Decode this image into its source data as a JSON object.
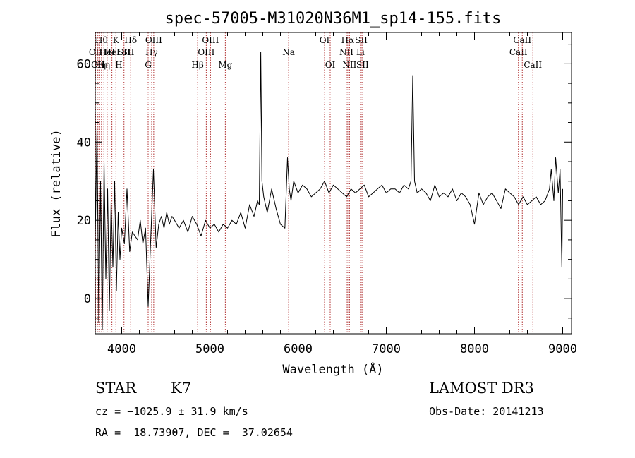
{
  "chart_data": {
    "type": "line",
    "title": "spec-57005-M31020N36M1_sp14-155.fits",
    "xlabel": "Wavelength (Å)",
    "ylabel": "Flux (relative)",
    "xlim": [
      3700,
      9100
    ],
    "ylim": [
      -9,
      68
    ],
    "xticks": [
      4000,
      5000,
      6000,
      7000,
      8000,
      9000
    ],
    "yticks": [
      0,
      20,
      40,
      60
    ],
    "series": [
      {
        "name": "spectrum",
        "x": [
          3700,
          3720,
          3740,
          3760,
          3780,
          3800,
          3820,
          3840,
          3860,
          3880,
          3900,
          3920,
          3940,
          3960,
          3980,
          4000,
          4030,
          4060,
          4090,
          4120,
          4150,
          4180,
          4210,
          4240,
          4270,
          4300,
          4330,
          4360,
          4390,
          4420,
          4450,
          4480,
          4510,
          4540,
          4570,
          4600,
          4650,
          4700,
          4750,
          4800,
          4850,
          4900,
          4950,
          5000,
          5050,
          5100,
          5150,
          5200,
          5250,
          5300,
          5350,
          5400,
          5450,
          5500,
          5540,
          5560,
          5577,
          5590,
          5610,
          5650,
          5700,
          5750,
          5800,
          5850,
          5880,
          5900,
          5920,
          5950,
          6000,
          6050,
          6100,
          6150,
          6200,
          6250,
          6300,
          6350,
          6400,
          6450,
          6500,
          6550,
          6600,
          6650,
          6700,
          6750,
          6800,
          6850,
          6900,
          6950,
          7000,
          7050,
          7100,
          7150,
          7200,
          7250,
          7280,
          7300,
          7320,
          7350,
          7400,
          7450,
          7500,
          7550,
          7600,
          7650,
          7700,
          7750,
          7800,
          7850,
          7900,
          7950,
          8000,
          8050,
          8100,
          8150,
          8200,
          8250,
          8300,
          8350,
          8400,
          8450,
          8500,
          8550,
          8600,
          8650,
          8700,
          8750,
          8800,
          8850,
          8870,
          8900,
          8920,
          8950,
          8970,
          8990,
          9000
        ],
        "values": [
          15,
          44,
          -6,
          30,
          -8,
          35,
          5,
          28,
          -3,
          25,
          8,
          30,
          2,
          22,
          10,
          18,
          14,
          28,
          12,
          17,
          16,
          15,
          20,
          14,
          18,
          -2,
          16,
          33,
          13,
          19,
          21,
          18,
          22,
          19,
          21,
          20,
          18,
          20,
          17,
          21,
          19,
          16,
          20,
          18,
          19,
          17,
          19,
          18,
          20,
          19,
          22,
          18,
          24,
          21,
          25,
          24,
          63,
          30,
          26,
          22,
          28,
          23,
          19,
          18,
          36,
          28,
          25,
          30,
          27,
          29,
          28,
          26,
          27,
          28,
          30,
          27,
          29,
          28,
          27,
          26,
          28,
          27,
          28,
          29,
          26,
          27,
          28,
          29,
          27,
          28,
          28,
          27,
          29,
          28,
          30,
          57,
          30,
          27,
          28,
          27,
          25,
          29,
          26,
          27,
          26,
          28,
          25,
          27,
          26,
          24,
          19,
          27,
          24,
          26,
          27,
          25,
          23,
          28,
          27,
          26,
          24,
          26,
          24,
          25,
          26,
          24,
          25,
          28,
          33,
          25,
          36,
          27,
          33,
          8,
          28
        ]
      }
    ],
    "lines": [
      {
        "wl": 3704,
        "label": "OII",
        "row": 1
      },
      {
        "wl": 3730,
        "label": "OII",
        "row": 2
      },
      {
        "wl": 3750,
        "label": "Hη",
        "row": 2
      },
      {
        "wl": 3771,
        "label": "Hθ",
        "row": 0
      },
      {
        "wl": 3798,
        "label": "Hη",
        "row": 2
      },
      {
        "wl": 3835,
        "label": "HeI",
        "row": 1
      },
      {
        "wl": 3889,
        "label": "HeI",
        "row": 1
      },
      {
        "wl": 3934,
        "label": "K",
        "row": 0
      },
      {
        "wl": 3968,
        "label": "H",
        "row": 2
      },
      {
        "wl": 4026,
        "label": "SII",
        "row": 1
      },
      {
        "wl": 4072,
        "label": "SII",
        "row": 1
      },
      {
        "wl": 4102,
        "label": "Hδ",
        "row": 0
      },
      {
        "wl": 4300,
        "label": "G",
        "row": 2
      },
      {
        "wl": 4340,
        "label": "Hγ",
        "row": 1
      },
      {
        "wl": 4363,
        "label": "OIII",
        "row": 0
      },
      {
        "wl": 4861,
        "label": "Hβ",
        "row": 2
      },
      {
        "wl": 4959,
        "label": "OIII",
        "row": 1
      },
      {
        "wl": 5007,
        "label": "OIII",
        "row": 0
      },
      {
        "wl": 5175,
        "label": "Mg",
        "row": 2
      },
      {
        "wl": 5893,
        "label": "Na",
        "row": 1
      },
      {
        "wl": 6300,
        "label": "OI",
        "row": 0
      },
      {
        "wl": 6364,
        "label": "OI",
        "row": 2
      },
      {
        "wl": 6548,
        "label": "NII",
        "row": 1
      },
      {
        "wl": 6563,
        "label": "Hα",
        "row": 0
      },
      {
        "wl": 6583,
        "label": "NII",
        "row": 2
      },
      {
        "wl": 6707,
        "label": "Li",
        "row": 1
      },
      {
        "wl": 6716,
        "label": "SII",
        "row": 0
      },
      {
        "wl": 6731,
        "label": "SII",
        "row": 2
      },
      {
        "wl": 8498,
        "label": "CaII",
        "row": 1
      },
      {
        "wl": 8542,
        "label": "CaII",
        "row": 0
      },
      {
        "wl": 8662,
        "label": "CaII",
        "row": 2
      }
    ]
  },
  "info": {
    "object_class": "STAR",
    "subclass": "K7",
    "survey": "LAMOST DR3",
    "cz": "cz = −1025.9 ± 31.9 km/s",
    "obs_date": "Obs-Date: 20141213",
    "radec": "RA =  18.73907, DEC =  37.02654"
  },
  "colors": {
    "line_marker": "#b03030",
    "spectrum": "#000000",
    "axes": "#000000"
  }
}
